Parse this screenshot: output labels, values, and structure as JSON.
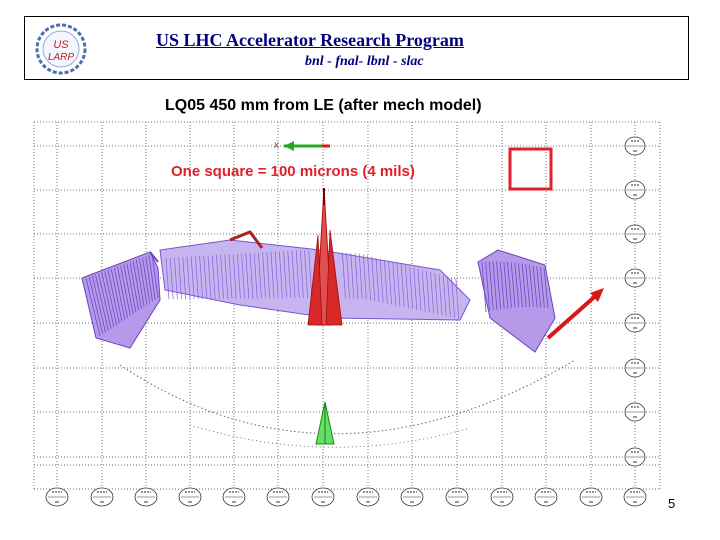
{
  "header": {
    "title": "US LHC Accelerator Research Program",
    "subtitle": "bnl - fnal- lbnl - slac",
    "logo_text_top": "US",
    "logo_text_bottom": "LARP"
  },
  "slide": {
    "title": "LQ05  450 mm from LE (after mech model)",
    "scale_note": "One square = 100 microns (4 mils)",
    "axis_marker": "x",
    "page_number": "5"
  },
  "colors": {
    "header_text": "#000080",
    "scale_note": "#e0202a",
    "mesh_purple": "#8a60d8",
    "mesh_red": "#d81818",
    "mesh_green": "#22bb22"
  }
}
